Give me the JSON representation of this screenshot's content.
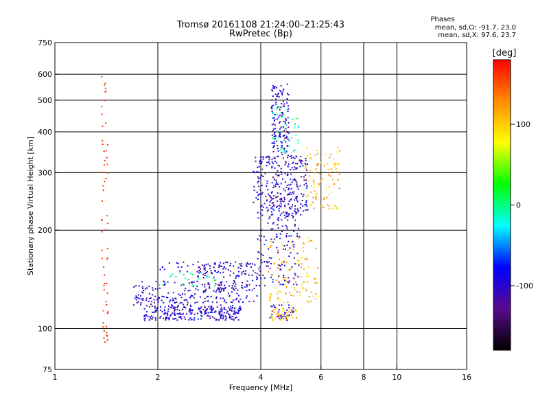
{
  "chart_data": {
    "type": "scatter",
    "title": "Tromsø 20161108 21:24:00–21:25:43",
    "subtitle": "RwPretec (Bp)",
    "xlabel": "Frequency [MHz]",
    "ylabel": "Stationary phase Virtual Height [km]",
    "x_scale": "log",
    "y_scale": "log",
    "xlim": [
      1,
      16
    ],
    "ylim": [
      75,
      750
    ],
    "x_ticks": [
      1,
      2,
      4,
      6,
      8,
      10,
      16
    ],
    "x_tick_labels": [
      "1",
      "2",
      "4",
      "6",
      "8",
      "10",
      "16"
    ],
    "x_grid_lines": [
      2,
      4,
      6,
      8,
      10
    ],
    "y_ticks": [
      75,
      100,
      200,
      300,
      400,
      500,
      600,
      750
    ],
    "y_tick_labels": [
      "75",
      "100",
      "200",
      "300",
      "400",
      "500",
      "600",
      "750"
    ],
    "y_grid_lines": [
      100,
      200,
      300,
      400,
      500,
      600
    ],
    "grid": true,
    "legend": {
      "title": "Phases",
      "line1": "mean, sd,O: -91.7, 23.0",
      "line2": "mean, sd,X:  97.6, 23.7",
      "placement": "top-right"
    },
    "colorbar": {
      "label": "[deg]",
      "range": [
        -180,
        180
      ],
      "ticks": [
        100,
        0,
        -100
      ],
      "tick_labels": [
        "100",
        "0",
        "-100"
      ],
      "colors": [
        "#ff0000",
        "#ff8c00",
        "#ffff00",
        "#00ff00",
        "#00ffff",
        "#0000ff",
        "#5a0a8c",
        "#000000"
      ]
    },
    "series": [
      {
        "colorRange": [
          -135,
          -65
        ],
        "clusters": [
          {
            "x": [
              1.82,
              3.5
            ],
            "y": [
              106,
              118
            ],
            "n": 260
          },
          {
            "x": [
              1.7,
              2.6
            ],
            "y": [
              118,
              128
            ],
            "n": 70
          },
          {
            "x": [
              1.7,
              3.5
            ],
            "y": [
              128,
              140
            ],
            "n": 70
          },
          {
            "x": [
              2.6,
              3.9
            ],
            "y": [
              120,
              160
            ],
            "n": 160
          },
          {
            "x": [
              3.9,
              5.2
            ],
            "y": [
              135,
              260
            ],
            "n": 180
          },
          {
            "x": [
              3.8,
              5.5
            ],
            "y": [
              220,
              340
            ],
            "n": 260
          },
          {
            "x": [
              4.3,
              4.85
            ],
            "y": [
              340,
              560
            ],
            "n": 140
          },
          {
            "x": [
              4.2,
              5.0
            ],
            "y": [
              106,
              118
            ],
            "n": 40
          },
          {
            "x": [
              2.0,
              3.8
            ],
            "y": [
              148,
              160
            ],
            "n": 40
          }
        ]
      },
      {
        "colorRange": [
          80,
          140
        ],
        "clusters": [
          {
            "x": [
              4.2,
              5.9
            ],
            "y": [
              120,
              190
            ],
            "n": 110
          },
          {
            "x": [
              5.4,
              6.8
            ],
            "y": [
              230,
              360
            ],
            "n": 90
          },
          {
            "x": [
              4.3,
              5.2
            ],
            "y": [
              106,
              116
            ],
            "n": 40
          }
        ]
      },
      {
        "colorRange": [
          -40,
          20
        ],
        "clusters": [
          {
            "x": [
              4.3,
              5.2
            ],
            "y": [
              340,
              480
            ],
            "n": 40
          },
          {
            "x": [
              2.0,
              3.0
            ],
            "y": [
              135,
              150
            ],
            "n": 25
          }
        ]
      },
      {
        "colorRange": [
          150,
          175
        ],
        "clusters": [
          {
            "x": [
              1.37,
              1.43
            ],
            "y": [
              85,
              650
            ],
            "n": 60
          }
        ]
      }
    ]
  }
}
